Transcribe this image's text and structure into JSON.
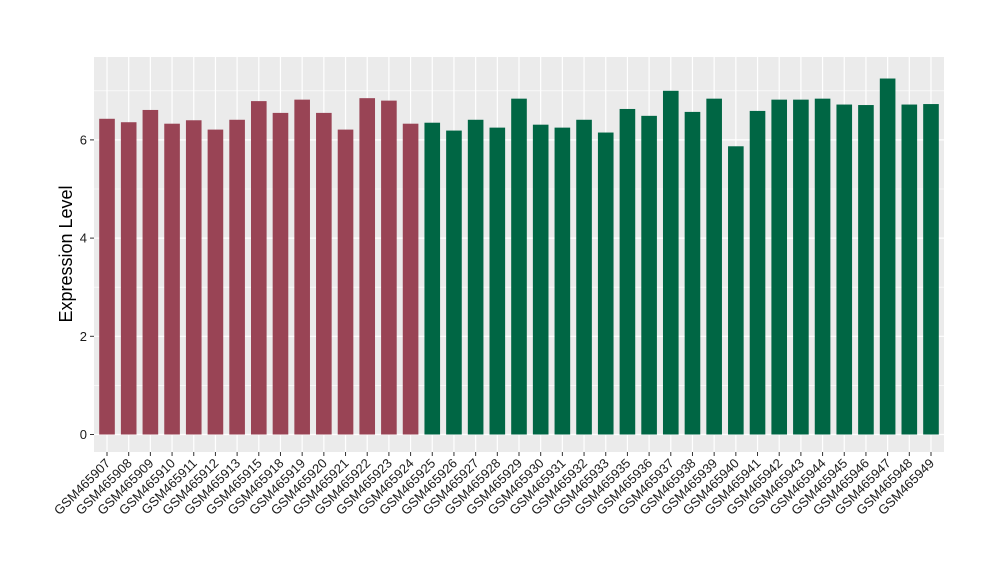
{
  "chart_data": {
    "type": "bar",
    "title": "",
    "xlabel": "",
    "ylabel": "Expression Level",
    "ylim": [
      -0.35,
      7.7
    ],
    "yticks": [
      0,
      2,
      4,
      6
    ],
    "grid": true,
    "legend": "none",
    "panel_background": "#ebebeb",
    "grid_color": "#ffffff",
    "categories": [
      "GSM465907",
      "GSM465908",
      "GSM465909",
      "GSM465910",
      "GSM465911",
      "GSM465912",
      "GSM465913",
      "GSM465915",
      "GSM465918",
      "GSM465919",
      "GSM465920",
      "GSM465921",
      "GSM465922",
      "GSM465923",
      "GSM465924",
      "GSM465925",
      "GSM465926",
      "GSM465927",
      "GSM465928",
      "GSM465929",
      "GSM465930",
      "GSM465931",
      "GSM465932",
      "GSM465933",
      "GSM465935",
      "GSM465936",
      "GSM465937",
      "GSM465938",
      "GSM465939",
      "GSM465940",
      "GSM465941",
      "GSM465942",
      "GSM465943",
      "GSM465944",
      "GSM465945",
      "GSM465946",
      "GSM465947",
      "GSM465948",
      "GSM465949"
    ],
    "values": [
      6.43,
      6.36,
      6.61,
      6.33,
      6.4,
      6.21,
      6.41,
      6.79,
      6.55,
      6.82,
      6.55,
      6.21,
      6.85,
      6.8,
      6.33,
      6.35,
      6.19,
      6.41,
      6.25,
      6.84,
      6.31,
      6.25,
      6.41,
      6.15,
      6.63,
      6.49,
      7.0,
      6.57,
      6.84,
      5.87,
      6.59,
      6.82,
      6.82,
      6.84,
      6.72,
      6.71,
      7.25,
      6.72,
      6.73
    ],
    "groups": [
      {
        "color": "#994455",
        "count": 15
      },
      {
        "color": "#006644",
        "count": 24
      }
    ]
  }
}
